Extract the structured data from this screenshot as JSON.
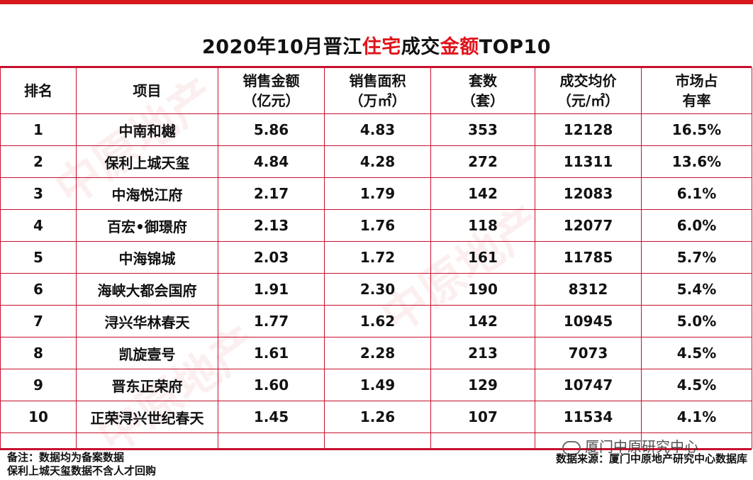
{
  "title_parts": [
    "2020年10月晋江",
    "住宅",
    "成交",
    "金额",
    "TOP10"
  ],
  "headers": {
    "rank": "排名",
    "project": "项目",
    "amount_l1": "销售金额",
    "amount_l2": "（亿元）",
    "area_l1": "销售面积",
    "area_l2": "（万㎡）",
    "units_l1": "套数",
    "units_l2": "（套）",
    "price_l1": "成交均价",
    "price_l2": "（元/㎡）",
    "share_l1": "市场占",
    "share_l2": "有率"
  },
  "rows": [
    {
      "rank": "1",
      "project": "中南和樾",
      "amount": "5.86",
      "area": "4.83",
      "units": "353",
      "price": "12128",
      "share": "16.5%"
    },
    {
      "rank": "2",
      "project": "保利上城天玺",
      "amount": "4.84",
      "area": "4.28",
      "units": "272",
      "price": "11311",
      "share": "13.6%"
    },
    {
      "rank": "3",
      "project": "中海悦江府",
      "amount": "2.17",
      "area": "1.79",
      "units": "142",
      "price": "12083",
      "share": "6.1%"
    },
    {
      "rank": "4",
      "project": "百宏•御璟府",
      "amount": "2.13",
      "area": "1.76",
      "units": "118",
      "price": "12077",
      "share": "6.0%"
    },
    {
      "rank": "5",
      "project": "中海锦城",
      "amount": "2.03",
      "area": "1.72",
      "units": "161",
      "price": "11785",
      "share": "5.7%"
    },
    {
      "rank": "6",
      "project": "海峡大都会国府",
      "amount": "1.91",
      "area": "2.30",
      "units": "190",
      "price": "8312",
      "share": "5.4%"
    },
    {
      "rank": "7",
      "project": "浔兴华林春天",
      "amount": "1.77",
      "area": "1.62",
      "units": "142",
      "price": "10945",
      "share": "5.0%"
    },
    {
      "rank": "8",
      "project": "凯旋壹号",
      "amount": "1.61",
      "area": "2.28",
      "units": "213",
      "price": "7073",
      "share": "4.5%"
    },
    {
      "rank": "9",
      "project": "晋东正荣府",
      "amount": "1.60",
      "area": "1.49",
      "units": "129",
      "price": "10747",
      "share": "4.5%"
    },
    {
      "rank": "10",
      "project": "正荣浔兴世纪春天",
      "amount": "1.45",
      "area": "1.26",
      "units": "107",
      "price": "11534",
      "share": "4.1%"
    }
  ],
  "notes": {
    "line1": "备注：数据均为备案数据",
    "line2": "保利上城天玺数据不含人才回购"
  },
  "source": "数据来源：厦门中原地产研究中心数据库",
  "wechat_label": "厦门中原研究中心",
  "watermark_text": "中原地产",
  "colors": {
    "accent": "#c8102e",
    "title_red": "#e0141b"
  }
}
